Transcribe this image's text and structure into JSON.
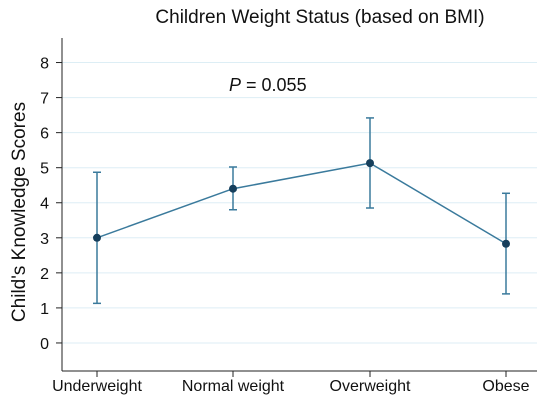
{
  "chart_data": {
    "type": "line",
    "title": "Children Weight Status (based on BMI)",
    "xlabel": "",
    "ylabel": "Child's Knowledge Scores",
    "categories": [
      "Underweight",
      "Normal weight",
      "Overweight",
      "Obese"
    ],
    "series": [
      {
        "values": [
          3.0,
          4.4,
          5.13,
          2.83
        ],
        "lower": [
          1.13,
          3.8,
          3.85,
          1.4
        ],
        "upper": [
          4.87,
          5.02,
          6.42,
          4.27
        ]
      }
    ],
    "ylim": [
      -0.8,
      8.7
    ],
    "yticks": [
      0,
      1,
      2,
      3,
      4,
      5,
      6,
      7,
      8
    ],
    "grid": true,
    "annotation": {
      "italic": "P",
      "text": " = 0.055"
    },
    "colors": {
      "line": "#3a7a9c",
      "marker": "#163f5c",
      "grid": "#ddeef5",
      "axis": "#222222"
    }
  }
}
